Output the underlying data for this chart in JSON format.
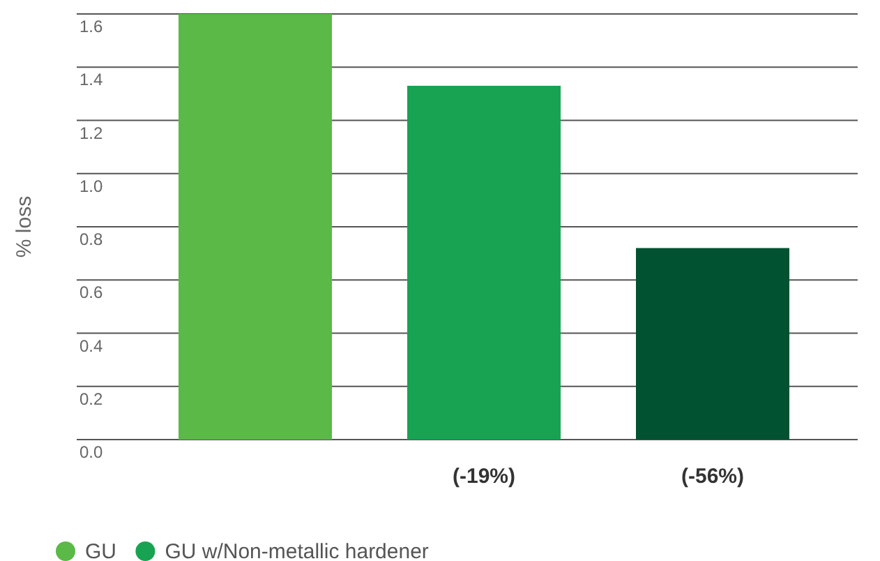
{
  "chart_data": {
    "type": "bar",
    "ylabel": "% loss",
    "categories": [
      null,
      "(-19%)",
      "(-56%)"
    ],
    "series": [
      {
        "name": "GU",
        "color": "#5ab947",
        "values": [
          1.6,
          null,
          null
        ]
      },
      {
        "name": "GU w/Non-metallic hardener",
        "color": "#17a352",
        "values": [
          null,
          1.33,
          null
        ]
      },
      {
        "color": "#005230",
        "values": [
          null,
          null,
          0.72
        ]
      }
    ],
    "ylim": [
      0,
      1.6
    ],
    "yticks": [
      {
        "value": 0,
        "label": "0.0"
      },
      {
        "value": 0.2,
        "label": "0.2"
      },
      {
        "value": 0.4,
        "label": "0.4"
      },
      {
        "value": 0.6,
        "label": "0.6"
      },
      {
        "value": 0.8,
        "label": "0.8"
      },
      {
        "value": 1,
        "label": "1.0"
      },
      {
        "value": 1.2,
        "label": "1.2"
      },
      {
        "value": 1.4,
        "label": "1.4"
      },
      {
        "value": 1.6,
        "label": "1.6"
      }
    ],
    "grid": "y",
    "legend": "bottom"
  }
}
